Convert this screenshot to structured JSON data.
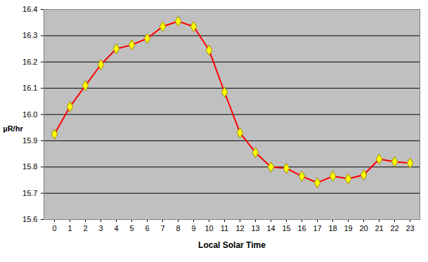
{
  "chart_data": {
    "type": "line",
    "x_label": "Local Solar Time",
    "y_label": "µR/hr",
    "categories": [
      "0",
      "1",
      "2",
      "3",
      "4",
      "5",
      "6",
      "7",
      "8",
      "9",
      "10",
      "11",
      "12",
      "13",
      "14",
      "15",
      "16",
      "17",
      "18",
      "19",
      "20",
      "21",
      "22",
      "23"
    ],
    "series": [
      {
        "name": "µR/hr",
        "color": "#ff0000",
        "marker": "diamond",
        "line_style": "solid",
        "values": [
          15.925,
          16.03,
          16.11,
          16.19,
          16.25,
          16.265,
          16.29,
          16.335,
          16.355,
          16.335,
          16.245,
          16.085,
          15.93,
          15.855,
          15.8,
          15.795,
          15.765,
          15.74,
          15.765,
          15.755,
          15.77,
          15.83,
          15.82,
          15.815
        ]
      }
    ],
    "ylim": [
      15.6,
      16.4
    ],
    "yticks": [
      15.6,
      15.7,
      15.8,
      15.9,
      {
        "value": 16,
        "label": "16.0"
      },
      16.1,
      16.2,
      16.3,
      16.4
    ],
    "grid": true
  }
}
